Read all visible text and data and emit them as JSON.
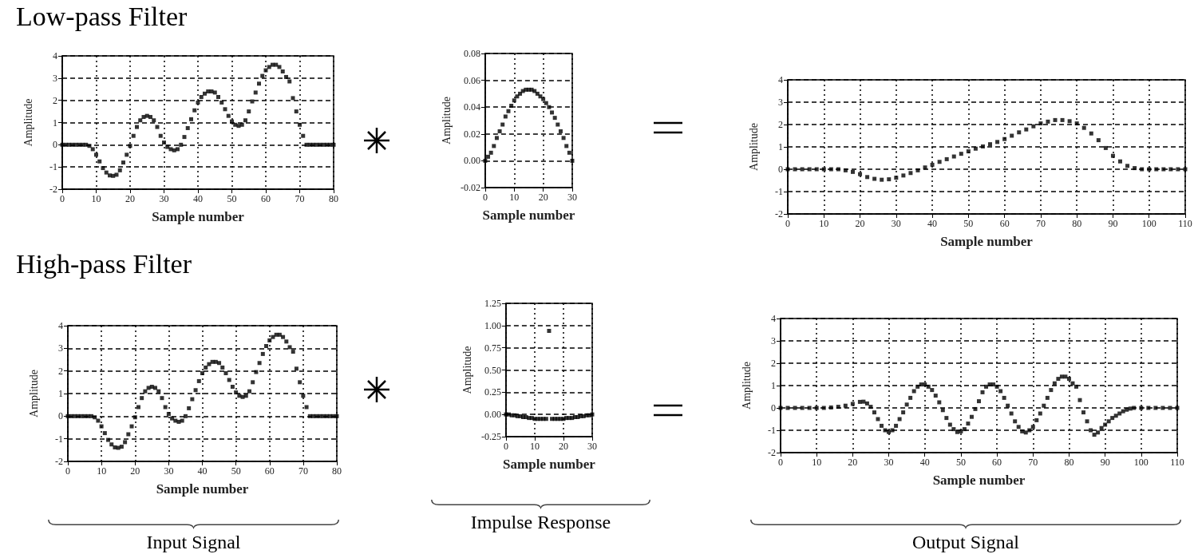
{
  "chart_data": [
    {
      "type": "scatter",
      "title": "Low-pass Filter",
      "xlabel": "Sample number",
      "ylabel": "Amplitude",
      "marker": "square",
      "grid": true,
      "xlim": [
        0,
        80
      ],
      "xticks": [
        0,
        10,
        20,
        30,
        40,
        50,
        60,
        70,
        80
      ],
      "ylim": [
        -2,
        4
      ],
      "yticks": [
        -2,
        -1,
        0,
        1,
        2,
        3,
        4
      ],
      "series": [
        {
          "color": "#000000",
          "x": [
            0,
            1,
            2,
            3,
            4,
            5,
            6,
            7,
            8,
            9,
            10,
            11,
            12,
            13,
            14,
            15,
            16,
            17,
            18,
            19,
            20,
            21,
            22,
            23,
            24,
            25,
            26,
            27,
            28,
            29,
            30,
            31,
            32,
            33,
            34,
            35,
            36,
            37,
            38,
            39,
            40,
            41,
            42,
            43,
            44,
            45,
            46,
            47,
            48,
            49,
            50,
            51,
            52,
            53,
            54,
            55,
            56,
            57,
            58,
            59,
            60,
            61,
            62,
            63,
            64,
            65,
            66,
            67,
            68,
            69,
            70,
            71,
            72,
            73,
            74,
            75,
            76,
            77,
            78,
            79,
            80
          ],
          "values": [
            0,
            0,
            0,
            0,
            0,
            0,
            0,
            0,
            -0.05,
            -0.2,
            -0.45,
            -0.75,
            -1.05,
            -1.25,
            -1.38,
            -1.4,
            -1.35,
            -1.15,
            -0.8,
            -0.45,
            -0.05,
            0.4,
            0.8,
            1.1,
            1.25,
            1.3,
            1.25,
            1.1,
            0.8,
            0.4,
            0.1,
            -0.1,
            -0.2,
            -0.25,
            -0.2,
            0,
            0.35,
            0.75,
            1.15,
            1.55,
            1.9,
            2.15,
            2.3,
            2.4,
            2.4,
            2.35,
            2.15,
            1.9,
            1.6,
            1.3,
            1.05,
            0.9,
            0.85,
            0.9,
            1.1,
            1.5,
            1.95,
            2.35,
            2.75,
            3.1,
            3.35,
            3.5,
            3.6,
            3.6,
            3.5,
            3.3,
            3.05,
            2.85,
            2.1,
            1.5,
            0.9,
            0.4,
            0,
            0,
            0,
            0,
            0,
            0,
            0,
            0,
            0
          ]
        }
      ]
    },
    {
      "type": "scatter",
      "xlabel": "Sample number",
      "ylabel": "Amplitude",
      "marker": "square",
      "grid": true,
      "xlim": [
        0,
        30
      ],
      "xticks": [
        0,
        10,
        20,
        30
      ],
      "ylim": [
        -0.02,
        0.08
      ],
      "yticks": [
        -0.02,
        {
          "value": 0,
          "label": "0.00"
        },
        0.02,
        0.04,
        0.06,
        0.08
      ],
      "series": [
        {
          "color": "#000000",
          "x": [
            0,
            1,
            2,
            3,
            4,
            5,
            6,
            7,
            8,
            9,
            10,
            11,
            12,
            13,
            14,
            15,
            16,
            17,
            18,
            19,
            20,
            21,
            22,
            23,
            24,
            25,
            26,
            27,
            28,
            29,
            30
          ],
          "values": [
            0,
            0.003,
            0.006,
            0.011,
            0.017,
            0.022,
            0.027,
            0.033,
            0.037,
            0.041,
            0.045,
            0.048,
            0.05,
            0.052,
            0.053,
            0.053,
            0.053,
            0.052,
            0.05,
            0.048,
            0.046,
            0.043,
            0.04,
            0.036,
            0.032,
            0.027,
            0.022,
            0.017,
            0.011,
            0.006,
            0
          ]
        }
      ]
    },
    {
      "type": "scatter",
      "xlabel": "Sample number",
      "ylabel": "Amplitude",
      "marker": "square",
      "grid": true,
      "xlim": [
        0,
        110
      ],
      "xticks": [
        0,
        10,
        20,
        30,
        40,
        50,
        60,
        70,
        80,
        90,
        100,
        110
      ],
      "ylim": [
        -2,
        4
      ],
      "yticks": [
        -2,
        -1,
        0,
        1,
        2,
        3,
        4
      ],
      "series": [
        {
          "color": "#000000",
          "x": [
            0,
            2,
            4,
            6,
            8,
            10,
            12,
            14,
            16,
            18,
            20,
            22,
            24,
            26,
            28,
            30,
            32,
            34,
            36,
            38,
            40,
            42,
            44,
            46,
            48,
            50,
            52,
            54,
            56,
            58,
            60,
            62,
            64,
            66,
            68,
            70,
            72,
            74,
            76,
            78,
            80,
            82,
            84,
            86,
            88,
            90,
            92,
            94,
            96,
            98,
            100,
            102,
            104,
            106,
            108,
            110
          ],
          "values": [
            0,
            0,
            0,
            0,
            0,
            0,
            0,
            0,
            -0.05,
            -0.12,
            -0.22,
            -0.35,
            -0.43,
            -0.47,
            -0.45,
            -0.38,
            -0.28,
            -0.17,
            -0.05,
            0.08,
            0.2,
            0.33,
            0.45,
            0.57,
            0.69,
            0.8,
            0.92,
            1.02,
            1.12,
            1.22,
            1.35,
            1.5,
            1.65,
            1.78,
            1.92,
            2.05,
            2.13,
            2.2,
            2.2,
            2.15,
            2.05,
            1.85,
            1.6,
            1.3,
            0.95,
            0.6,
            0.35,
            0.15,
            0.05,
            0,
            0,
            0,
            0,
            0,
            0,
            0
          ]
        }
      ]
    },
    {
      "type": "scatter",
      "title": "High-pass Filter",
      "xlabel": "Sample number",
      "ylabel": "Amplitude",
      "marker": "square",
      "grid": true,
      "xlim": [
        0,
        80
      ],
      "xticks": [
        0,
        10,
        20,
        30,
        40,
        50,
        60,
        70,
        80
      ],
      "ylim": [
        -2,
        4
      ],
      "yticks": [
        -2,
        -1,
        0,
        1,
        2,
        3,
        4
      ],
      "annotations": [
        "Input Signal"
      ],
      "series": [
        {
          "color": "#000000",
          "x": [
            0,
            1,
            2,
            3,
            4,
            5,
            6,
            7,
            8,
            9,
            10,
            11,
            12,
            13,
            14,
            15,
            16,
            17,
            18,
            19,
            20,
            21,
            22,
            23,
            24,
            25,
            26,
            27,
            28,
            29,
            30,
            31,
            32,
            33,
            34,
            35,
            36,
            37,
            38,
            39,
            40,
            41,
            42,
            43,
            44,
            45,
            46,
            47,
            48,
            49,
            50,
            51,
            52,
            53,
            54,
            55,
            56,
            57,
            58,
            59,
            60,
            61,
            62,
            63,
            64,
            65,
            66,
            67,
            68,
            69,
            70,
            71,
            72,
            73,
            74,
            75,
            76,
            77,
            78,
            79,
            80
          ],
          "values": [
            0,
            0,
            0,
            0,
            0,
            0,
            0,
            0,
            -0.05,
            -0.2,
            -0.45,
            -0.75,
            -1.05,
            -1.25,
            -1.38,
            -1.4,
            -1.35,
            -1.15,
            -0.8,
            -0.45,
            -0.05,
            0.4,
            0.8,
            1.1,
            1.25,
            1.3,
            1.25,
            1.1,
            0.8,
            0.4,
            0.1,
            -0.1,
            -0.2,
            -0.25,
            -0.2,
            0,
            0.35,
            0.75,
            1.15,
            1.55,
            1.9,
            2.15,
            2.3,
            2.4,
            2.4,
            2.35,
            2.15,
            1.9,
            1.6,
            1.3,
            1.05,
            0.9,
            0.85,
            0.9,
            1.1,
            1.5,
            1.95,
            2.35,
            2.75,
            3.1,
            3.35,
            3.5,
            3.6,
            3.6,
            3.5,
            3.3,
            3.05,
            2.85,
            2.1,
            1.5,
            0.9,
            0.4,
            0,
            0,
            0,
            0,
            0,
            0,
            0,
            0,
            0
          ]
        }
      ]
    },
    {
      "type": "scatter",
      "xlabel": "Sample number",
      "ylabel": "Amplitude",
      "marker": "square",
      "grid": true,
      "xlim": [
        0,
        30
      ],
      "xticks": [
        0,
        10,
        20,
        30
      ],
      "ylim": [
        -0.25,
        1.25
      ],
      "yticks": [
        -0.25,
        {
          "value": 0,
          "label": "0.00"
        },
        0.25,
        {
          "value": 0.5,
          "label": "0.50"
        },
        0.75,
        {
          "value": 1,
          "label": "1.00"
        },
        1.25
      ],
      "annotations": [
        "Impulse Response"
      ],
      "series": [
        {
          "color": "#000000",
          "x": [
            0,
            1,
            2,
            3,
            4,
            5,
            6,
            7,
            8,
            9,
            10,
            11,
            12,
            13,
            14,
            15,
            16,
            17,
            18,
            19,
            20,
            21,
            22,
            23,
            24,
            25,
            26,
            27,
            28,
            29,
            30
          ],
          "values": [
            0,
            0,
            -0.01,
            -0.01,
            -0.02,
            -0.02,
            -0.03,
            -0.03,
            -0.04,
            -0.04,
            -0.05,
            -0.05,
            -0.05,
            -0.05,
            -0.05,
            0.94,
            -0.05,
            -0.05,
            -0.05,
            -0.05,
            -0.05,
            -0.04,
            -0.04,
            -0.04,
            -0.03,
            -0.03,
            -0.02,
            -0.02,
            -0.01,
            -0.01,
            0
          ]
        }
      ]
    },
    {
      "type": "scatter",
      "xlabel": "Sample number",
      "ylabel": "Amplitude",
      "marker": "square",
      "grid": true,
      "xlim": [
        0,
        110
      ],
      "xticks": [
        0,
        10,
        20,
        30,
        40,
        50,
        60,
        70,
        80,
        90,
        100,
        110
      ],
      "ylim": [
        -2,
        4
      ],
      "yticks": [
        -2,
        -1,
        0,
        1,
        2,
        3,
        4
      ],
      "annotations": [
        "Output Signal"
      ],
      "series": [
        {
          "color": "#000000",
          "x": [
            0,
            2,
            4,
            6,
            8,
            10,
            12,
            14,
            16,
            18,
            20,
            22,
            23,
            24,
            25,
            26,
            27,
            28,
            29,
            30,
            31,
            32,
            33,
            34,
            35,
            36,
            37,
            38,
            39,
            40,
            41,
            42,
            43,
            44,
            45,
            46,
            47,
            48,
            49,
            50,
            51,
            52,
            53,
            54,
            55,
            56,
            57,
            58,
            59,
            60,
            61,
            62,
            63,
            64,
            65,
            66,
            67,
            68,
            69,
            70,
            71,
            72,
            73,
            74,
            75,
            76,
            77,
            78,
            79,
            80,
            81,
            82,
            83,
            84,
            85,
            86,
            87,
            88,
            89,
            90,
            91,
            92,
            93,
            94,
            95,
            96,
            97,
            98,
            100,
            102,
            104,
            106,
            108,
            110
          ],
          "values": [
            0,
            0,
            0,
            0,
            0,
            0,
            0,
            0.02,
            0.05,
            0.1,
            0.18,
            0.27,
            0.28,
            0.2,
            0.05,
            -0.2,
            -0.5,
            -0.8,
            -1.0,
            -1.08,
            -1.0,
            -0.8,
            -0.5,
            -0.2,
            0.15,
            0.45,
            0.75,
            0.95,
            1.05,
            1.05,
            0.95,
            0.8,
            0.55,
            0.25,
            -0.1,
            -0.45,
            -0.75,
            -0.95,
            -1.08,
            -1.05,
            -0.95,
            -0.7,
            -0.4,
            -0.05,
            0.3,
            0.7,
            0.95,
            1.05,
            1.05,
            0.95,
            0.75,
            0.45,
            0.1,
            -0.25,
            -0.6,
            -0.85,
            -1.05,
            -1.1,
            -1.0,
            -0.85,
            -0.55,
            -0.25,
            0.1,
            0.45,
            0.8,
            1.1,
            1.3,
            1.4,
            1.4,
            1.3,
            1.1,
            0.95,
            0.35,
            -0.2,
            -0.6,
            -1.0,
            -1.2,
            -1.1,
            -0.9,
            -0.75,
            -0.6,
            -0.45,
            -0.35,
            -0.25,
            -0.15,
            -0.08,
            -0.03,
            0,
            0,
            0,
            0,
            0,
            0,
            0
          ]
        }
      ]
    }
  ]
}
